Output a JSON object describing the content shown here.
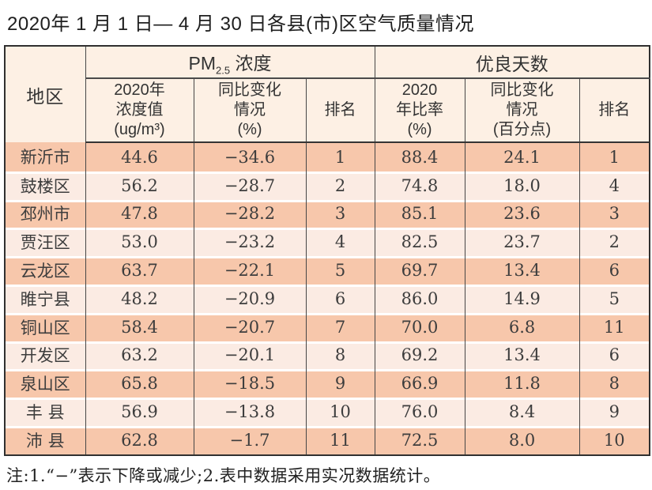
{
  "page": {
    "title": "2020年 1 月 1 日— 4 月 30 日各县(市)区空气质量情况",
    "note": "注:1.“−”表示下降或减少;2.表中数据采用实况数据统计。"
  },
  "colors": {
    "row_dark": "#f7c7ab",
    "row_light": "#fbebe3",
    "header_bg": "#fdf0e4",
    "border": "#464646"
  },
  "table": {
    "header": {
      "region": "地区",
      "pm_group": {
        "prefix": "PM",
        "sub": "2.5",
        "suffix": " 浓度"
      },
      "good_group": "优良天数",
      "sub_pm_value": "2020年\n浓度值\n(ug/m³)",
      "sub_pm_change": "同比变化\n情况\n(%)",
      "sub_pm_rank": "排名",
      "sub_good_rate": "2020\n年比率\n(%)",
      "sub_good_change": "同比变化\n情况\n(百分点)",
      "sub_good_rank": "排名"
    },
    "rows": [
      {
        "region": "新沂市",
        "pm_value": "44.6",
        "pm_change": "−34.6",
        "pm_rank": "1",
        "good_rate": "88.4",
        "good_change": "24.1",
        "good_rank": "1"
      },
      {
        "region": "鼓楼区",
        "pm_value": "56.2",
        "pm_change": "−28.7",
        "pm_rank": "2",
        "good_rate": "74.8",
        "good_change": "18.0",
        "good_rank": "4"
      },
      {
        "region": "邳州市",
        "pm_value": "47.8",
        "pm_change": "−28.2",
        "pm_rank": "3",
        "good_rate": "85.1",
        "good_change": "23.6",
        "good_rank": "3"
      },
      {
        "region": "贾汪区",
        "pm_value": "53.0",
        "pm_change": "−23.2",
        "pm_rank": "4",
        "good_rate": "82.5",
        "good_change": "23.7",
        "good_rank": "2"
      },
      {
        "region": "云龙区",
        "pm_value": "63.7",
        "pm_change": "−22.1",
        "pm_rank": "5",
        "good_rate": "69.7",
        "good_change": "13.4",
        "good_rank": "6"
      },
      {
        "region": "睢宁县",
        "pm_value": "48.2",
        "pm_change": "−20.9",
        "pm_rank": "6",
        "good_rate": "86.0",
        "good_change": "14.9",
        "good_rank": "5"
      },
      {
        "region": "铜山区",
        "pm_value": "58.4",
        "pm_change": "−20.7",
        "pm_rank": "7",
        "good_rate": "70.0",
        "good_change": "6.8",
        "good_rank": "11"
      },
      {
        "region": "开发区",
        "pm_value": "63.2",
        "pm_change": "−20.1",
        "pm_rank": "8",
        "good_rate": "69.2",
        "good_change": "13.4",
        "good_rank": "6"
      },
      {
        "region": "泉山区",
        "pm_value": "65.8",
        "pm_change": "−18.5",
        "pm_rank": "9",
        "good_rate": "66.9",
        "good_change": "11.8",
        "good_rank": "8"
      },
      {
        "region": "丰 县",
        "pm_value": "56.9",
        "pm_change": "−13.8",
        "pm_rank": "10",
        "good_rate": "76.0",
        "good_change": "8.4",
        "good_rank": "9"
      },
      {
        "region": "沛 县",
        "pm_value": "62.8",
        "pm_change": "−1.7",
        "pm_rank": "11",
        "good_rate": "72.5",
        "good_change": "8.0",
        "good_rank": "10"
      }
    ]
  }
}
